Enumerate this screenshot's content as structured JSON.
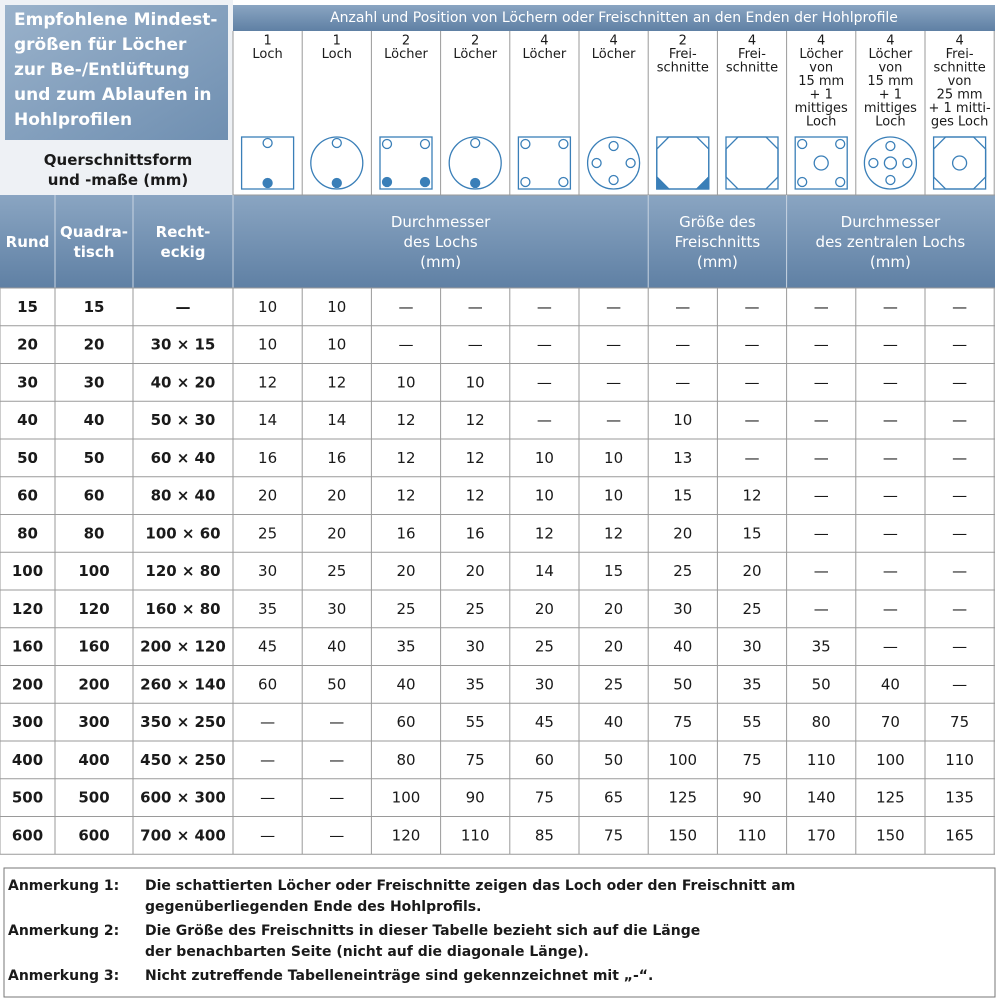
{
  "title": [
    "Empfohlene Mindest-",
    "größen für Löcher",
    "zur Be-/Entlüftung",
    "und zum Ablaufen in",
    "Hohlprofilen"
  ],
  "subtitle": [
    "Querschnittsform",
    "und -maße (mm)"
  ],
  "group_header": "Anzahl und Position von Löchern oder Freischnitten an den Enden der Hohlprofile",
  "columns": [
    [
      "1",
      "Loch"
    ],
    [
      "1",
      "Loch"
    ],
    [
      "2",
      "Löcher"
    ],
    [
      "2",
      "Löcher"
    ],
    [
      "4",
      "Löcher"
    ],
    [
      "4",
      "Löcher"
    ],
    [
      "2",
      "Frei-",
      "schnitte"
    ],
    [
      "4",
      "Frei-",
      "schnitte"
    ],
    [
      "4",
      "Löcher",
      "von",
      "15 mm",
      "+ 1",
      "mittiges",
      "Loch"
    ],
    [
      "4",
      "Löcher",
      "von",
      "15 mm",
      "+ 1",
      "mittiges",
      "Loch"
    ],
    [
      "4",
      "Frei-",
      "schnitte",
      "von",
      "25 mm",
      "+ 1 mitti-",
      "ges Loch"
    ]
  ],
  "row_headers": [
    [
      "Rund"
    ],
    [
      "Quadra-",
      "tisch"
    ],
    [
      "Recht-",
      "eckig"
    ]
  ],
  "value_groups": [
    [
      "Durchmesser",
      "des Lochs",
      "(mm)"
    ],
    [
      "Größe des",
      "Freischnitts",
      "(mm)"
    ],
    [
      "Durchmesser",
      "des zentralen Lochs",
      "(mm)"
    ]
  ],
  "rows": [
    [
      "15",
      "15",
      "—",
      "10",
      "10",
      "—",
      "—",
      "—",
      "—",
      "—",
      "—",
      "—",
      "—",
      "—"
    ],
    [
      "20",
      "20",
      "30 × 15",
      "10",
      "10",
      "—",
      "—",
      "—",
      "—",
      "—",
      "—",
      "—",
      "—",
      "—"
    ],
    [
      "30",
      "30",
      "40 × 20",
      "12",
      "12",
      "10",
      "10",
      "—",
      "—",
      "—",
      "—",
      "—",
      "—",
      "—"
    ],
    [
      "40",
      "40",
      "50 × 30",
      "14",
      "14",
      "12",
      "12",
      "—",
      "—",
      "10",
      "—",
      "—",
      "—",
      "—"
    ],
    [
      "50",
      "50",
      "60 × 40",
      "16",
      "16",
      "12",
      "12",
      "10",
      "10",
      "13",
      "—",
      "—",
      "—",
      "—"
    ],
    [
      "60",
      "60",
      "80 × 40",
      "20",
      "20",
      "12",
      "12",
      "10",
      "10",
      "15",
      "12",
      "—",
      "—",
      "—"
    ],
    [
      "80",
      "80",
      "100 × 60",
      "25",
      "20",
      "16",
      "16",
      "12",
      "12",
      "20",
      "15",
      "—",
      "—",
      "—"
    ],
    [
      "100",
      "100",
      "120 × 80",
      "30",
      "25",
      "20",
      "20",
      "14",
      "15",
      "25",
      "20",
      "—",
      "—",
      "—"
    ],
    [
      "120",
      "120",
      "160 × 80",
      "35",
      "30",
      "25",
      "25",
      "20",
      "20",
      "30",
      "25",
      "—",
      "—",
      "—"
    ],
    [
      "160",
      "160",
      "200 × 120",
      "45",
      "40",
      "35",
      "30",
      "25",
      "20",
      "40",
      "30",
      "35",
      "—",
      "—"
    ],
    [
      "200",
      "200",
      "260 × 140",
      "60",
      "50",
      "40",
      "35",
      "30",
      "25",
      "50",
      "35",
      "50",
      "40",
      "—"
    ],
    [
      "300",
      "300",
      "350 × 250",
      "—",
      "—",
      "60",
      "55",
      "45",
      "40",
      "75",
      "55",
      "80",
      "70",
      "75"
    ],
    [
      "400",
      "400",
      "450 × 250",
      "—",
      "—",
      "80",
      "75",
      "60",
      "50",
      "100",
      "75",
      "110",
      "100",
      "110"
    ],
    [
      "500",
      "500",
      "600 × 300",
      "—",
      "—",
      "100",
      "90",
      "75",
      "65",
      "125",
      "90",
      "140",
      "125",
      "135"
    ],
    [
      "600",
      "600",
      "700 × 400",
      "—",
      "—",
      "120",
      "110",
      "85",
      "75",
      "150",
      "110",
      "170",
      "150",
      "165"
    ]
  ],
  "notes": [
    {
      "label": "Anmerkung 1:",
      "lines": [
        "Die schattierten Löcher oder Freischnitte zeigen das Loch oder den Freischnitt am",
        "gegenüberliegenden Ende des Hohlprofils."
      ]
    },
    {
      "label": "Anmerkung 2:",
      "lines": [
        "Die Größe des Freischnitts in dieser Tabelle bezieht sich auf die Länge",
        "der benachbarten Seite (nicht auf die diagonale Länge)."
      ]
    },
    {
      "label": "Anmerkung 3:",
      "lines": [
        "Nicht zutreffende Tabelleneinträge sind gekennzeichnet mit „-“."
      ]
    }
  ]
}
